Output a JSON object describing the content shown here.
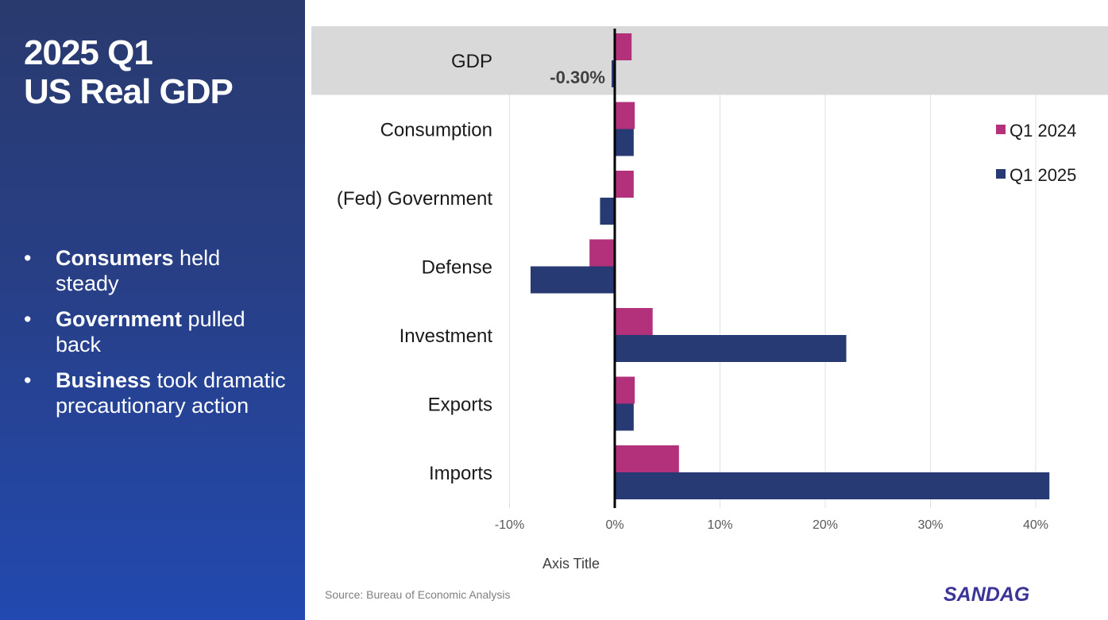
{
  "slide": {
    "title_line1": "2025 Q1",
    "title_line2": "US Real GDP",
    "bullets": [
      {
        "bold": "Consumers",
        "rest": " held steady"
      },
      {
        "bold": "Government",
        "rest": " pulled back"
      },
      {
        "bold": "Business",
        "rest": " took dramatic precautionary action"
      }
    ],
    "bullet_marker": "•",
    "source": "Source: Bureau of Economic Analysis",
    "logo": "SANDAG"
  },
  "chart_data": {
    "type": "bar",
    "orientation": "horizontal",
    "categories": [
      "GDP",
      "Consumption",
      "(Fed) Government",
      "Defense",
      "Investment",
      "Exports",
      "Imports"
    ],
    "series": [
      {
        "name": "Q1 2024",
        "color": "#b3317a",
        "values": [
          1.6,
          1.9,
          1.8,
          -2.4,
          3.6,
          1.9,
          6.1
        ]
      },
      {
        "name": "Q1 2025",
        "color": "#283a73",
        "values": [
          -0.3,
          1.8,
          -1.4,
          -8.0,
          22.0,
          1.8,
          41.3
        ]
      }
    ],
    "highlight_category": "GDP",
    "highlight_color": "#d9d9d9",
    "data_label": "-0.30%",
    "xlim": [
      -10,
      42
    ],
    "xticks": [
      -10,
      0,
      10,
      20,
      30,
      40
    ],
    "xtick_labels": [
      "-10%",
      "0%",
      "10%",
      "20%",
      "30%",
      "40%"
    ],
    "xlabel": "Axis Title",
    "grid": "vertical",
    "legend": "right"
  }
}
